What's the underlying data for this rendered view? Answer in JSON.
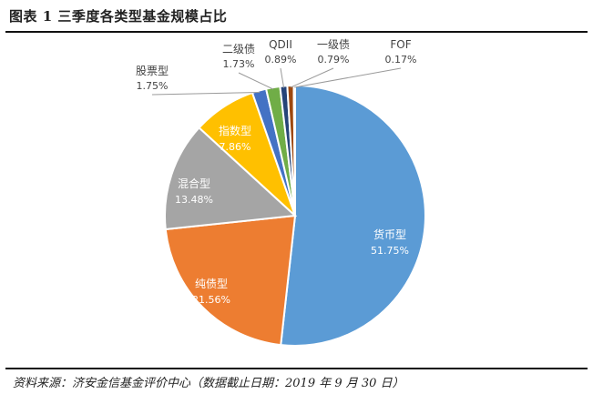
{
  "header": {
    "title": "图表 1  三季度各类型基金规模占比"
  },
  "footer": {
    "source": "资料来源：济安金信基金评价中心（数据截止日期：2019 年 9 月 30 日）"
  },
  "chart_data": {
    "type": "pie",
    "title": "",
    "slices": [
      {
        "name": "货币型",
        "value": 51.75,
        "label": "51.75%",
        "color": "#5b9bd5"
      },
      {
        "name": "纯债型",
        "value": 21.56,
        "label": "21.56%",
        "color": "#ed7d31"
      },
      {
        "name": "混合型",
        "value": 13.48,
        "label": "13.48%",
        "color": "#a5a5a5"
      },
      {
        "name": "指数型",
        "value": 7.86,
        "label": "7.86%",
        "color": "#ffc000"
      },
      {
        "name": "股票型",
        "value": 1.75,
        "label": "1.75%",
        "color": "#4472c4"
      },
      {
        "name": "二级债",
        "value": 1.73,
        "label": "1.73%",
        "color": "#70ad47"
      },
      {
        "name": "QDII",
        "value": 0.89,
        "label": "0.89%",
        "color": "#264478"
      },
      {
        "name": "一级债",
        "value": 0.79,
        "label": "0.79%",
        "color": "#9e480e"
      },
      {
        "name": "FOF",
        "value": 0.17,
        "label": "0.17%",
        "color": "#636363"
      }
    ]
  }
}
